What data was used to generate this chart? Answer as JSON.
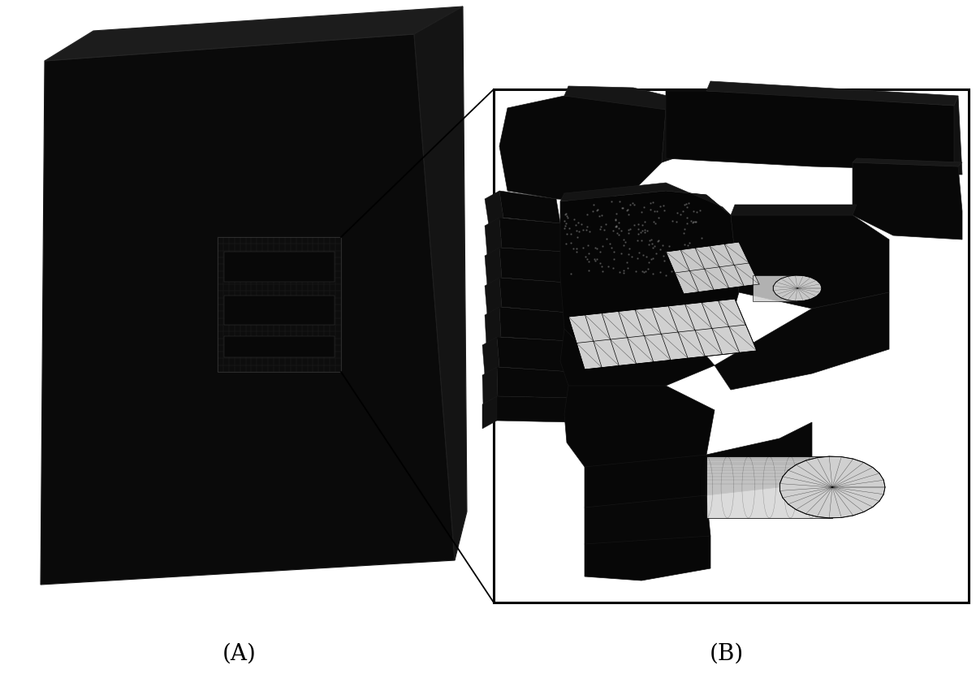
{
  "background_color": "#ffffff",
  "label_A": "(A)",
  "label_B": "(B)",
  "label_fontsize": 20,
  "fig_width": 12.02,
  "fig_height": 8.51,
  "dark": "#060606",
  "dark2": "#111111",
  "dark3": "#1a1a1a",
  "mesh_gray": "#c8c8c8",
  "mesh_gray2": "#b8b8b8",
  "white": "#ffffff",
  "black": "#000000"
}
